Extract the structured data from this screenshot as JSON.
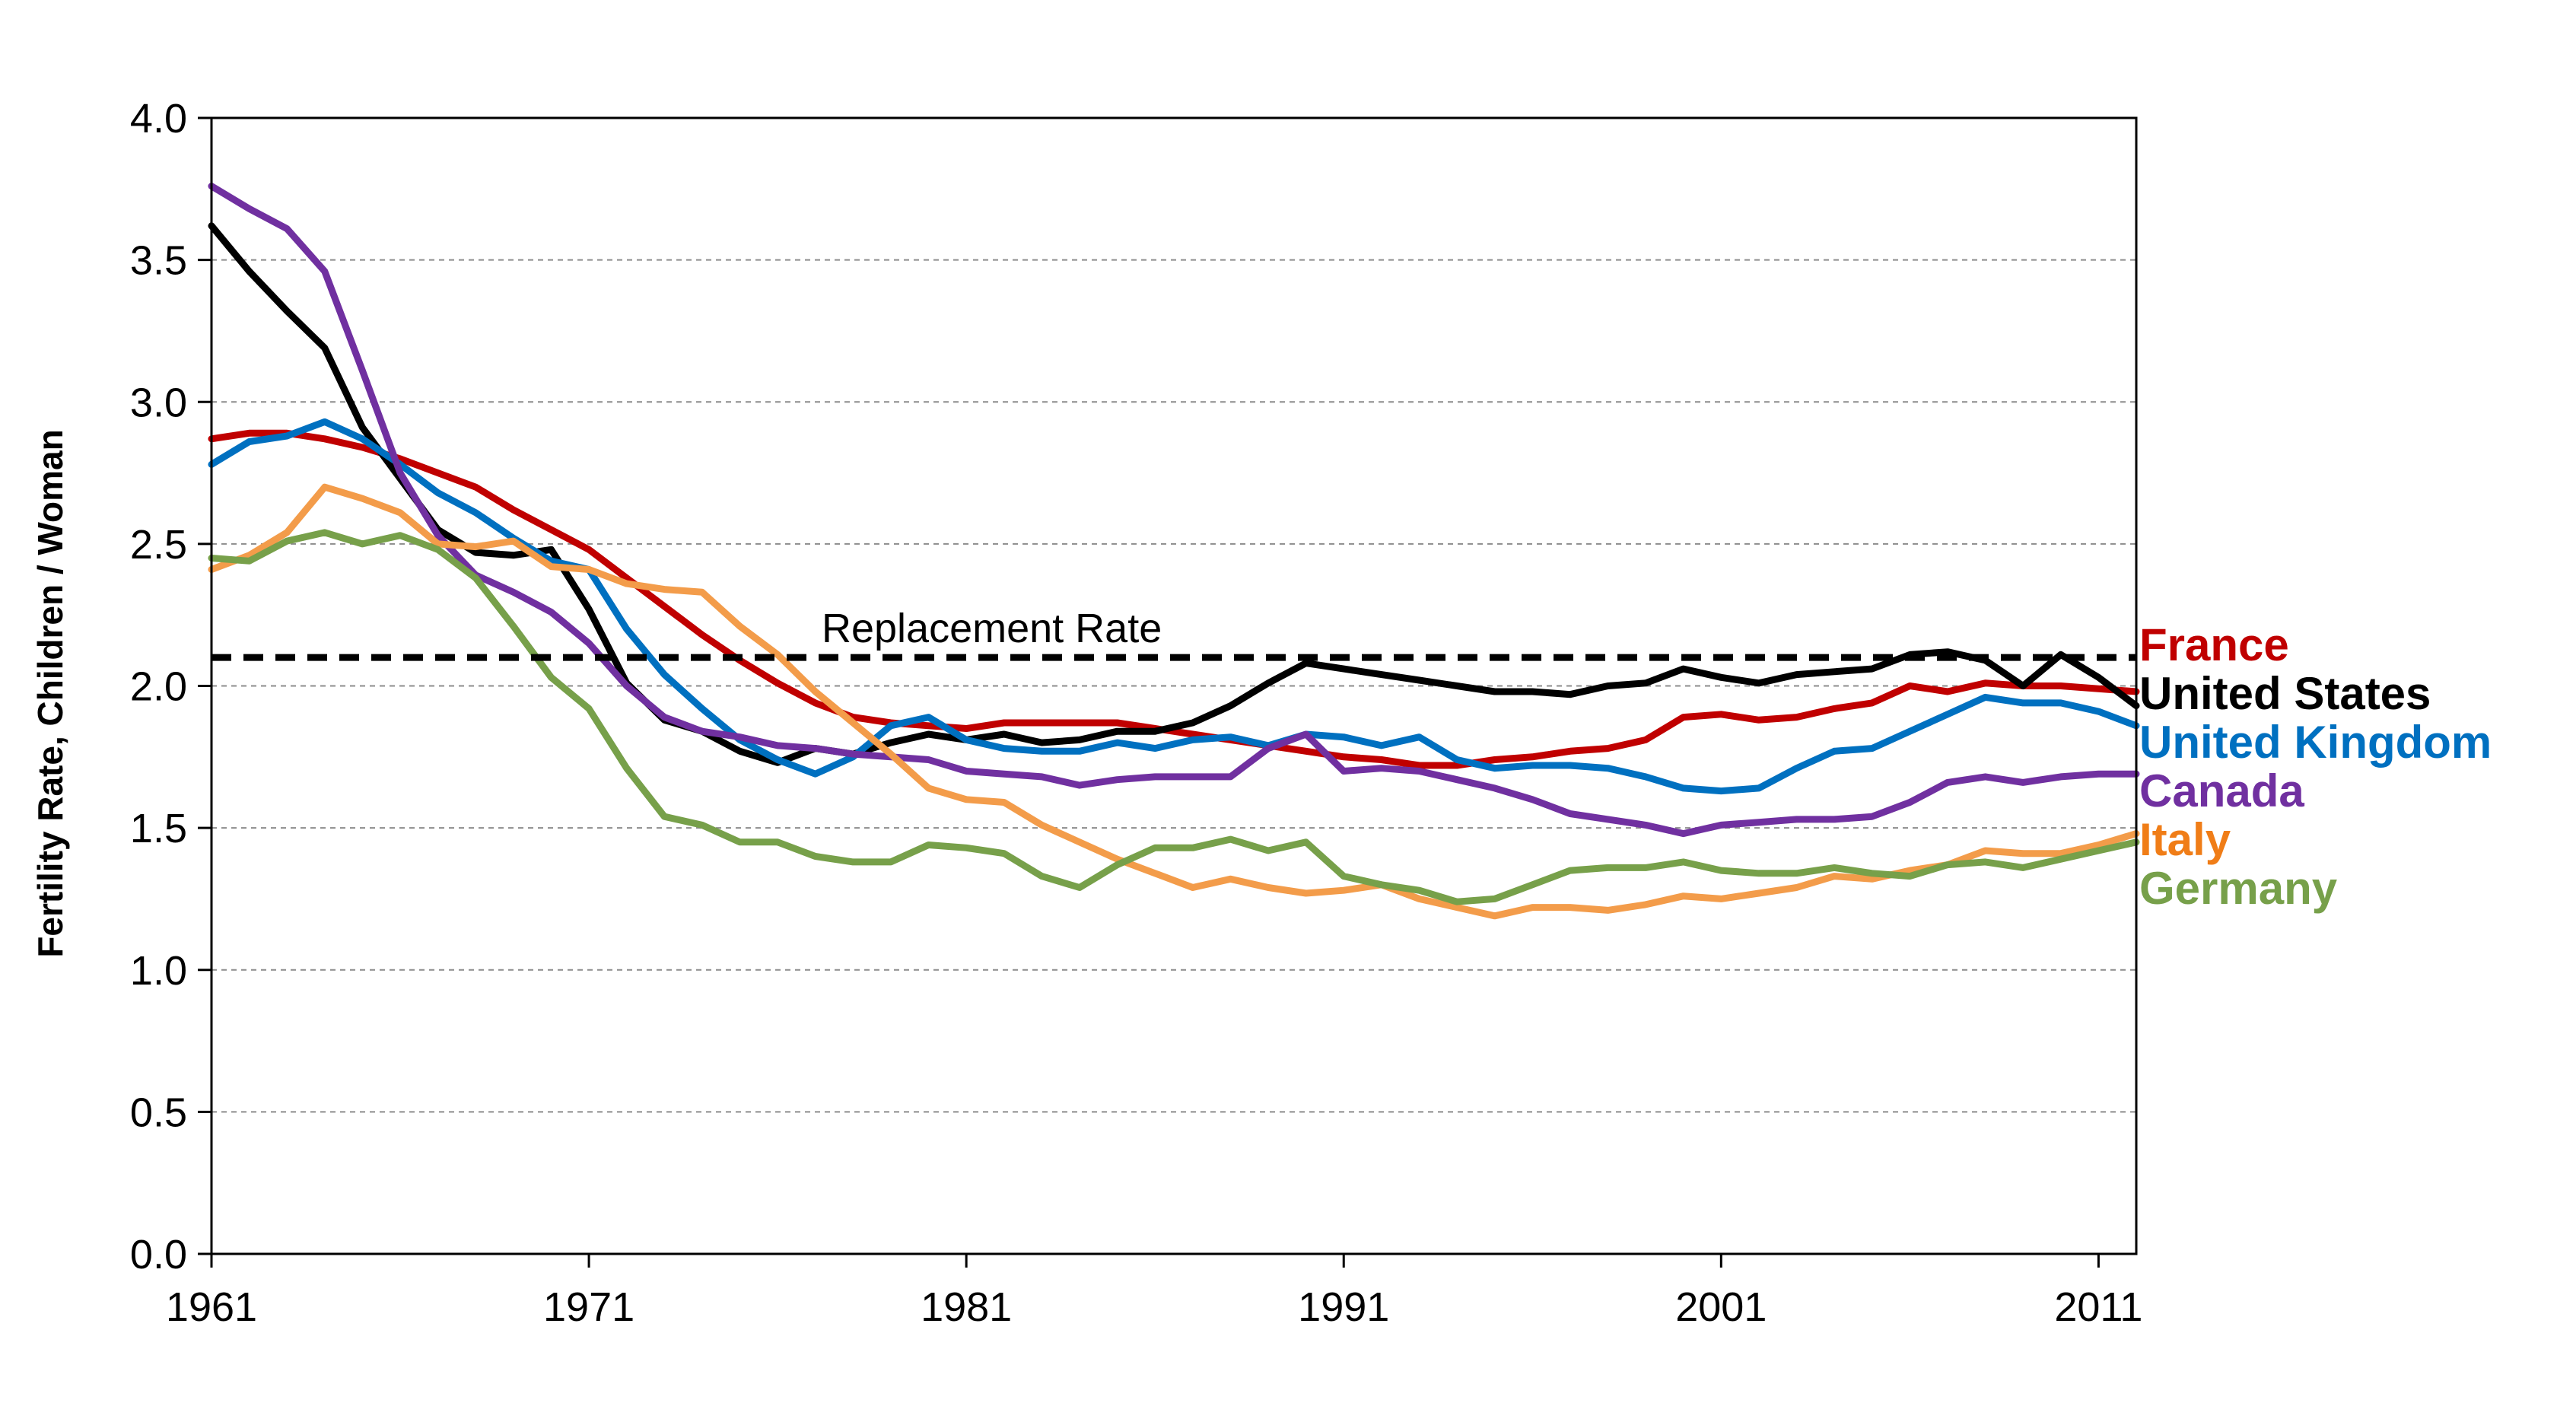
{
  "chart_data": {
    "type": "line",
    "title": "",
    "xlabel": "",
    "ylabel": "Fertility Rate, Children / Woman",
    "xlim": [
      1961,
      2012
    ],
    "ylim": [
      0,
      4
    ],
    "x_ticks": [
      1961,
      1971,
      1981,
      1991,
      2001,
      2011
    ],
    "x_tick_labels": [
      "1961",
      "1971",
      "1981",
      "1991",
      "2001",
      "2011"
    ],
    "y_ticks": [
      0,
      0.5,
      1,
      1.5,
      2,
      2.5,
      3,
      3.5,
      4
    ],
    "y_tick_labels": [
      "0.0",
      "0.5",
      "1.0",
      "1.5",
      "2.0",
      "2.5",
      "3.0",
      "3.5",
      "4.0"
    ],
    "grid": "horizontal-dashed",
    "legend_placement": "right",
    "reference_line": {
      "label": "Replacement Rate",
      "value": 2.1,
      "color": "#000000"
    },
    "x": [
      1961,
      1962,
      1963,
      1964,
      1965,
      1966,
      1967,
      1968,
      1969,
      1970,
      1971,
      1972,
      1973,
      1974,
      1975,
      1976,
      1977,
      1978,
      1979,
      1980,
      1981,
      1982,
      1983,
      1984,
      1985,
      1986,
      1987,
      1988,
      1989,
      1990,
      1991,
      1992,
      1993,
      1994,
      1995,
      1996,
      1997,
      1998,
      1999,
      2000,
      2001,
      2002,
      2003,
      2004,
      2005,
      2006,
      2007,
      2008,
      2009,
      2010,
      2011,
      2012
    ],
    "series": [
      {
        "name": "France",
        "color": "#c00000",
        "values": [
          2.87,
          2.89,
          2.89,
          2.87,
          2.84,
          2.8,
          2.75,
          2.7,
          2.62,
          2.55,
          2.48,
          2.38,
          2.28,
          2.18,
          2.09,
          2.01,
          1.94,
          1.89,
          1.87,
          1.86,
          1.85,
          1.87,
          1.87,
          1.87,
          1.87,
          1.85,
          1.83,
          1.81,
          1.79,
          1.77,
          1.75,
          1.74,
          1.72,
          1.72,
          1.74,
          1.75,
          1.77,
          1.78,
          1.81,
          1.89,
          1.9,
          1.88,
          1.89,
          1.92,
          1.94,
          2.0,
          1.98,
          2.01,
          2.0,
          2.0,
          1.99,
          1.98
        ]
      },
      {
        "name": "United States",
        "color": "#000000",
        "values": [
          3.62,
          3.46,
          3.32,
          3.19,
          2.91,
          2.73,
          2.55,
          2.47,
          2.46,
          2.48,
          2.27,
          2.01,
          1.88,
          1.84,
          1.77,
          1.73,
          1.78,
          1.76,
          1.8,
          1.83,
          1.81,
          1.83,
          1.8,
          1.81,
          1.84,
          1.84,
          1.87,
          1.93,
          2.01,
          2.08,
          2.06,
          2.04,
          2.02,
          2.0,
          1.98,
          1.98,
          1.97,
          2.0,
          2.01,
          2.06,
          2.03,
          2.01,
          2.04,
          2.05,
          2.06,
          2.11,
          2.12,
          2.09,
          2.0,
          2.11,
          2.03,
          1.93
        ]
      },
      {
        "name": "United Kingdom",
        "color": "#0070c0",
        "values": [
          2.78,
          2.86,
          2.88,
          2.93,
          2.87,
          2.78,
          2.68,
          2.61,
          2.52,
          2.44,
          2.41,
          2.2,
          2.04,
          1.92,
          1.81,
          1.74,
          1.69,
          1.75,
          1.86,
          1.89,
          1.81,
          1.78,
          1.77,
          1.77,
          1.8,
          1.78,
          1.81,
          1.82,
          1.79,
          1.83,
          1.82,
          1.79,
          1.82,
          1.74,
          1.71,
          1.72,
          1.72,
          1.71,
          1.68,
          1.64,
          1.63,
          1.64,
          1.71,
          1.77,
          1.78,
          1.84,
          1.9,
          1.96,
          1.94,
          1.94,
          1.91,
          1.86
        ]
      },
      {
        "name": "Canada",
        "color": "#7030a0",
        "values": [
          3.76,
          3.68,
          3.61,
          3.46,
          3.11,
          2.75,
          2.53,
          2.39,
          2.33,
          2.26,
          2.15,
          2.0,
          1.89,
          1.84,
          1.82,
          1.79,
          1.78,
          1.76,
          1.75,
          1.74,
          1.7,
          1.69,
          1.68,
          1.65,
          1.67,
          1.68,
          1.68,
          1.68,
          1.78,
          1.83,
          1.7,
          1.71,
          1.7,
          1.67,
          1.64,
          1.6,
          1.55,
          1.53,
          1.51,
          1.48,
          1.51,
          1.52,
          1.53,
          1.53,
          1.54,
          1.59,
          1.66,
          1.68,
          1.66,
          1.68,
          1.69,
          1.69
        ]
      },
      {
        "name": "Italy",
        "color": "#f39c4a",
        "values": [
          2.41,
          2.46,
          2.54,
          2.7,
          2.66,
          2.61,
          2.5,
          2.49,
          2.51,
          2.42,
          2.41,
          2.36,
          2.34,
          2.33,
          2.21,
          2.11,
          1.98,
          1.87,
          1.76,
          1.64,
          1.6,
          1.59,
          1.51,
          1.45,
          1.39,
          1.34,
          1.29,
          1.32,
          1.29,
          1.27,
          1.28,
          1.3,
          1.25,
          1.22,
          1.19,
          1.22,
          1.22,
          1.21,
          1.23,
          1.26,
          1.25,
          1.27,
          1.29,
          1.33,
          1.32,
          1.35,
          1.37,
          1.42,
          1.41,
          1.41,
          1.44,
          1.48
        ]
      },
      {
        "name": "Germany",
        "color": "#77a04a",
        "values": [
          2.45,
          2.44,
          2.51,
          2.54,
          2.5,
          2.53,
          2.48,
          2.38,
          2.21,
          2.03,
          1.92,
          1.71,
          1.54,
          1.51,
          1.45,
          1.45,
          1.4,
          1.38,
          1.38,
          1.44,
          1.43,
          1.41,
          1.33,
          1.29,
          1.37,
          1.43,
          1.43,
          1.46,
          1.42,
          1.45,
          1.33,
          1.3,
          1.28,
          1.24,
          1.25,
          1.3,
          1.35,
          1.36,
          1.36,
          1.38,
          1.35,
          1.34,
          1.34,
          1.36,
          1.34,
          1.33,
          1.37,
          1.38,
          1.36,
          1.39,
          1.42,
          1.45
        ]
      }
    ],
    "legend": [
      {
        "name": "France",
        "color": "#c00000"
      },
      {
        "name": "United States",
        "color": "#000000"
      },
      {
        "name": "United Kingdom",
        "color": "#0070c0"
      },
      {
        "name": "Canada",
        "color": "#7030a0"
      },
      {
        "name": "Italy",
        "color": "#f07d17"
      },
      {
        "name": "Germany",
        "color": "#77a04a"
      }
    ]
  }
}
